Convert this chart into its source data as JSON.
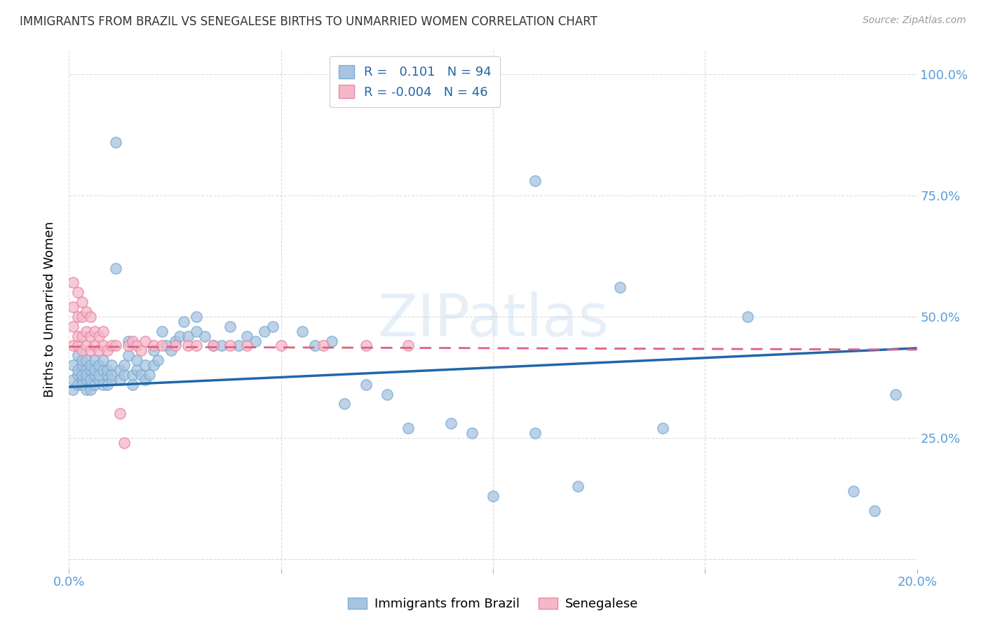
{
  "title": "IMMIGRANTS FROM BRAZIL VS SENEGALESE BIRTHS TO UNMARRIED WOMEN CORRELATION CHART",
  "source": "Source: ZipAtlas.com",
  "ylabel": "Births to Unmarried Women",
  "brazil_color": "#a8c4e0",
  "brazil_edge_color": "#7aafd4",
  "brazil_line_color": "#2266aa",
  "senegal_color": "#f4b8c8",
  "senegal_edge_color": "#e888a8",
  "senegal_line_color": "#e06080",
  "watermark": "ZIPatlas",
  "brazil_r": 0.101,
  "brazil_n": 94,
  "senegal_r": -0.004,
  "senegal_n": 46,
  "xlim": [
    0.0,
    0.2
  ],
  "ylim": [
    -0.02,
    1.05
  ],
  "brazil_line_x0": 0.0,
  "brazil_line_y0": 0.355,
  "brazil_line_x1": 0.2,
  "brazil_line_y1": 0.435,
  "senegal_line_x0": 0.0,
  "senegal_line_y0": 0.438,
  "senegal_line_x1": 0.2,
  "senegal_line_y1": 0.432,
  "brazil_points_x": [
    0.001,
    0.001,
    0.001,
    0.002,
    0.002,
    0.002,
    0.002,
    0.003,
    0.003,
    0.003,
    0.003,
    0.003,
    0.004,
    0.004,
    0.004,
    0.004,
    0.004,
    0.005,
    0.005,
    0.005,
    0.005,
    0.005,
    0.006,
    0.006,
    0.006,
    0.006,
    0.007,
    0.007,
    0.007,
    0.008,
    0.008,
    0.008,
    0.009,
    0.009,
    0.009,
    0.01,
    0.01,
    0.01,
    0.011,
    0.011,
    0.012,
    0.012,
    0.013,
    0.013,
    0.014,
    0.014,
    0.015,
    0.015,
    0.016,
    0.016,
    0.017,
    0.018,
    0.018,
    0.019,
    0.02,
    0.02,
    0.021,
    0.022,
    0.023,
    0.024,
    0.025,
    0.026,
    0.027,
    0.028,
    0.03,
    0.03,
    0.032,
    0.034,
    0.036,
    0.038,
    0.04,
    0.042,
    0.044,
    0.046,
    0.048,
    0.055,
    0.058,
    0.062,
    0.065,
    0.07,
    0.075,
    0.08,
    0.09,
    0.095,
    0.1,
    0.11,
    0.12,
    0.14,
    0.16,
    0.185,
    0.19,
    0.195,
    0.11,
    0.13
  ],
  "brazil_points_y": [
    0.37,
    0.4,
    0.35,
    0.38,
    0.36,
    0.42,
    0.39,
    0.37,
    0.4,
    0.36,
    0.38,
    0.41,
    0.37,
    0.39,
    0.35,
    0.41,
    0.38,
    0.36,
    0.39,
    0.37,
    0.4,
    0.35,
    0.38,
    0.36,
    0.41,
    0.39,
    0.37,
    0.4,
    0.38,
    0.36,
    0.39,
    0.41,
    0.38,
    0.36,
    0.39,
    0.37,
    0.4,
    0.38,
    0.86,
    0.6,
    0.37,
    0.39,
    0.38,
    0.4,
    0.45,
    0.42,
    0.38,
    0.36,
    0.39,
    0.41,
    0.38,
    0.37,
    0.4,
    0.38,
    0.4,
    0.43,
    0.41,
    0.47,
    0.44,
    0.43,
    0.45,
    0.46,
    0.49,
    0.46,
    0.5,
    0.47,
    0.46,
    0.44,
    0.44,
    0.48,
    0.44,
    0.46,
    0.45,
    0.47,
    0.48,
    0.47,
    0.44,
    0.45,
    0.32,
    0.36,
    0.34,
    0.27,
    0.28,
    0.26,
    0.13,
    0.26,
    0.15,
    0.27,
    0.5,
    0.14,
    0.1,
    0.34,
    0.78,
    0.56
  ],
  "senegal_points_x": [
    0.001,
    0.001,
    0.001,
    0.001,
    0.002,
    0.002,
    0.002,
    0.002,
    0.003,
    0.003,
    0.003,
    0.003,
    0.004,
    0.004,
    0.004,
    0.005,
    0.005,
    0.005,
    0.006,
    0.006,
    0.007,
    0.007,
    0.008,
    0.008,
    0.009,
    0.01,
    0.011,
    0.012,
    0.013,
    0.014,
    0.015,
    0.016,
    0.017,
    0.018,
    0.02,
    0.022,
    0.025,
    0.028,
    0.03,
    0.034,
    0.038,
    0.042,
    0.05,
    0.06,
    0.07,
    0.08
  ],
  "senegal_points_y": [
    0.44,
    0.48,
    0.52,
    0.57,
    0.44,
    0.46,
    0.5,
    0.55,
    0.43,
    0.46,
    0.5,
    0.53,
    0.44,
    0.47,
    0.51,
    0.43,
    0.46,
    0.5,
    0.44,
    0.47,
    0.43,
    0.46,
    0.44,
    0.47,
    0.43,
    0.44,
    0.44,
    0.3,
    0.24,
    0.44,
    0.45,
    0.44,
    0.43,
    0.45,
    0.44,
    0.44,
    0.44,
    0.44,
    0.44,
    0.44,
    0.44,
    0.44,
    0.44,
    0.44,
    0.44,
    0.44
  ],
  "xtick_positions": [
    0.0,
    0.05,
    0.1,
    0.15,
    0.2
  ],
  "xtick_labels_show": [
    "0.0%",
    "",
    "",
    "",
    "20.0%"
  ],
  "ytick_positions": [
    0.0,
    0.25,
    0.5,
    0.75,
    1.0
  ],
  "ytick_labels": [
    "",
    "25.0%",
    "50.0%",
    "75.0%",
    "100.0%"
  ]
}
